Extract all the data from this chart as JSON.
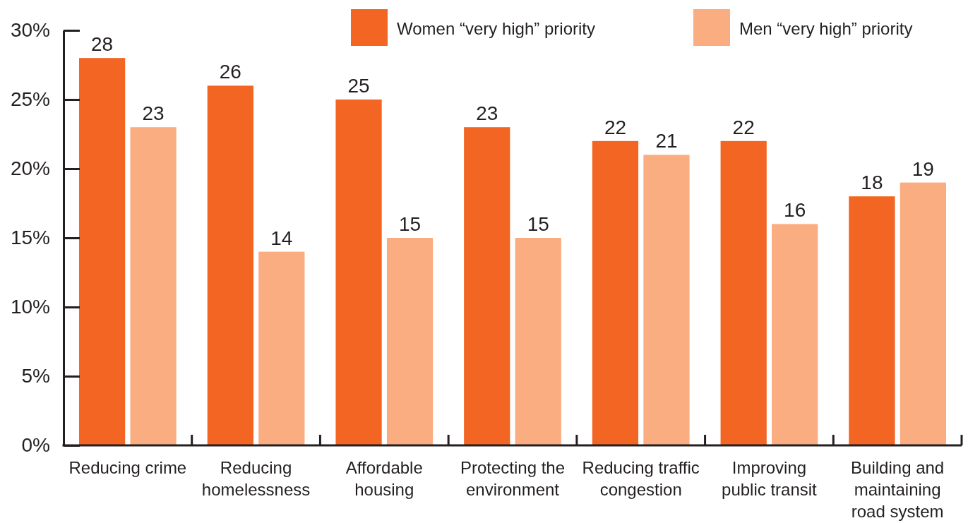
{
  "chart_data": {
    "type": "bar",
    "categories": [
      "Reducing crime",
      "Reducing\nhomelessness",
      "Affordable\nhousing",
      "Protecting the\nenvironment",
      "Reducing traffic\ncongestion",
      "Improving\npublic transit",
      "Building and\nmaintaining\nroad system"
    ],
    "series": [
      {
        "name": "Women “very high” priority",
        "color": "#f26522",
        "values": [
          28,
          26,
          25,
          23,
          22,
          22,
          18
        ]
      },
      {
        "name": "Men “very high” priority",
        "color": "#f9ad81",
        "values": [
          23,
          14,
          15,
          15,
          21,
          16,
          19
        ]
      }
    ],
    "ylim": [
      0,
      30
    ],
    "yticks": [
      {
        "value": 0,
        "label": "0%"
      },
      {
        "value": 5,
        "label": "5%"
      },
      {
        "value": 10,
        "label": "10%"
      },
      {
        "value": 15,
        "label": "15%"
      },
      {
        "value": 20,
        "label": "20%"
      },
      {
        "value": 25,
        "label": "25%"
      },
      {
        "value": 30,
        "label": "30%"
      }
    ],
    "data_labels": true,
    "legend": "top right"
  }
}
